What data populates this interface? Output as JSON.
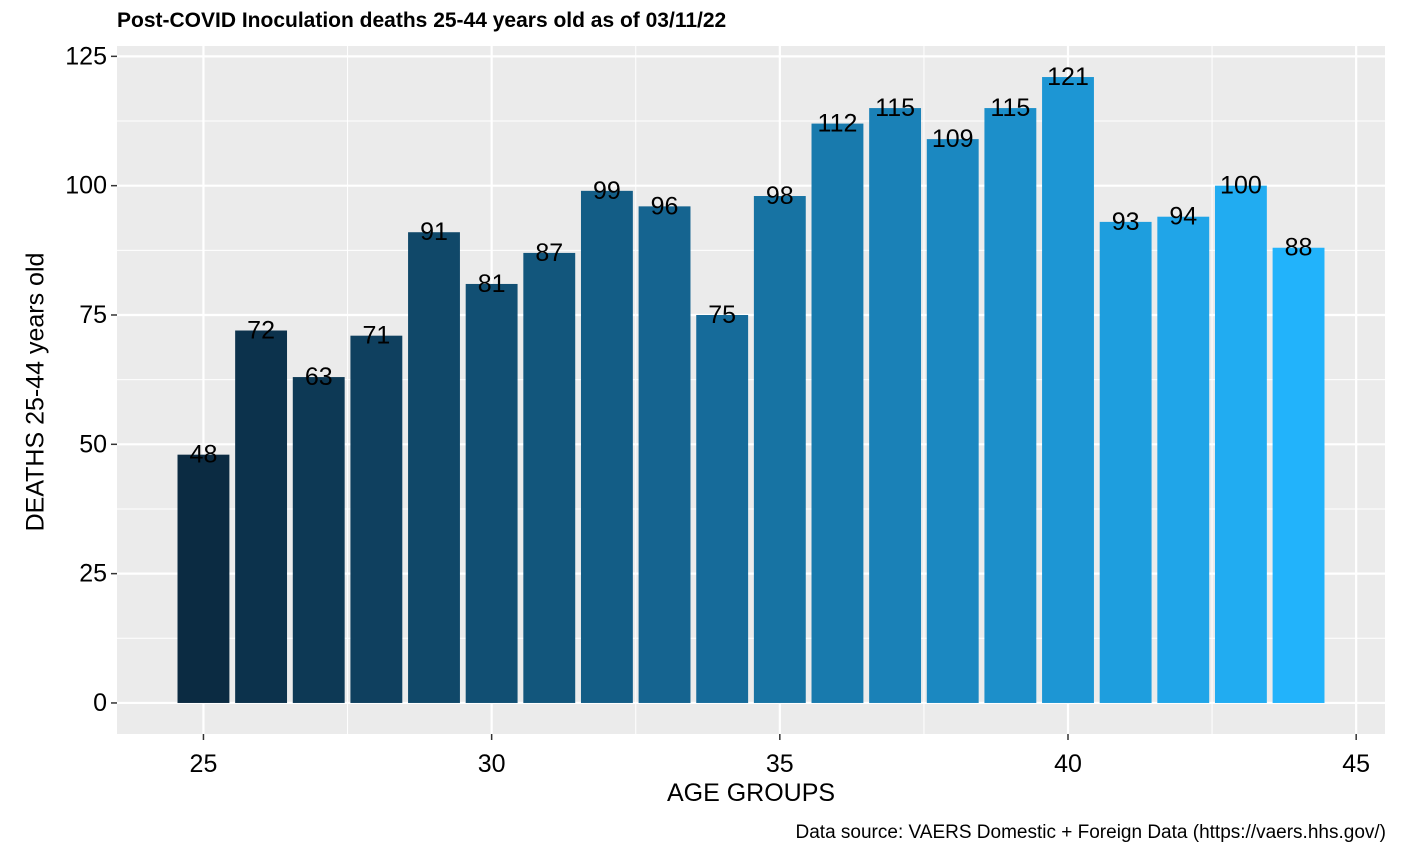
{
  "chart_data": {
    "type": "bar",
    "title": "Post-COVID Inoculation deaths 25-44 years old as of 03/11/22",
    "xlabel": "AGE GROUPS",
    "ylabel": "DEATHS 25-44 years old",
    "caption": "Data source: VAERS Domestic + Foreign Data (https://vaers.hhs.gov/)",
    "x": [
      25,
      26,
      27,
      28,
      29,
      30,
      31,
      32,
      33,
      34,
      35,
      36,
      37,
      38,
      39,
      40,
      41,
      42,
      43,
      44
    ],
    "values": [
      48,
      72,
      63,
      71,
      91,
      81,
      87,
      99,
      96,
      75,
      98,
      112,
      115,
      109,
      115,
      121,
      93,
      94,
      100,
      88
    ],
    "data_labels": [
      "48",
      "72",
      "63",
      "71",
      "91",
      "81",
      "87",
      "99",
      "96",
      "75",
      "98",
      "112",
      "115",
      "109",
      "115",
      "121",
      "93",
      "94",
      "100",
      "88"
    ],
    "xlim": [
      23.5,
      45.5
    ],
    "ylim": [
      -6,
      127
    ],
    "x_ticks": [
      "25",
      "30",
      "35",
      "40",
      "45"
    ],
    "y_ticks": [
      "0",
      "25",
      "50",
      "75",
      "100",
      "125"
    ],
    "grid": true,
    "legend": "none",
    "bar_color_start": "#0b2b42",
    "bar_color_end": "#22b3fb",
    "panel_background": "#ebebeb"
  }
}
